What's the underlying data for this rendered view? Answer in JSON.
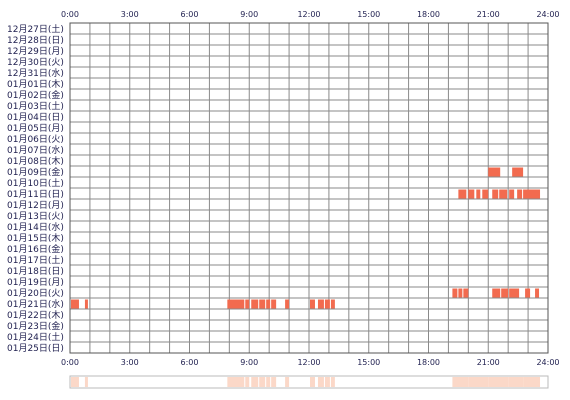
{
  "chart_data": {
    "type": "timeline",
    "x_axis": {
      "unit": "hour",
      "range": [
        0,
        24
      ],
      "tick_labels": [
        "0:00",
        "3:00",
        "6:00",
        "9:00",
        "12:00",
        "15:00",
        "18:00",
        "21:00",
        "24:00"
      ]
    },
    "days": [
      "12月27日(土)",
      "12月28日(日)",
      "12月29日(月)",
      "12月30日(火)",
      "12月31日(水)",
      "01月01日(木)",
      "01月02日(金)",
      "01月03日(土)",
      "01月04日(日)",
      "01月05日(月)",
      "01月06日(火)",
      "01月07日(水)",
      "01月08日(木)",
      "01月09日(金)",
      "01月10日(土)",
      "01月11日(日)",
      "01月12日(月)",
      "01月13日(火)",
      "01月14日(水)",
      "01月15日(木)",
      "01月16日(金)",
      "01月17日(土)",
      "01月18日(日)",
      "01月19日(月)",
      "01月20日(火)",
      "01月21日(水)",
      "01月22日(木)",
      "01月23日(金)",
      "01月24日(土)",
      "01月25日(日)"
    ],
    "activity": [
      {
        "day": "01月09日(金)",
        "segments": [
          [
            21.0,
            21.6
          ],
          [
            22.2,
            22.75
          ]
        ]
      },
      {
        "day": "01月11日(日)",
        "segments": [
          [
            19.5,
            19.9
          ],
          [
            20.0,
            20.3
          ],
          [
            20.4,
            20.6
          ],
          [
            20.7,
            21.0
          ],
          [
            21.2,
            21.5
          ],
          [
            21.55,
            21.95
          ],
          [
            22.05,
            22.3
          ],
          [
            22.45,
            22.7
          ],
          [
            22.75,
            23.6
          ]
        ]
      },
      {
        "day": "01月20日(火)",
        "segments": [
          [
            19.2,
            19.45
          ],
          [
            19.5,
            19.7
          ],
          [
            19.75,
            20.0
          ],
          [
            21.2,
            21.6
          ],
          [
            21.65,
            22.0
          ],
          [
            22.05,
            22.55
          ],
          [
            22.85,
            23.1
          ],
          [
            23.35,
            23.55
          ]
        ]
      },
      {
        "day": "01月21日(水)",
        "segments": [
          [
            0.05,
            0.45
          ],
          [
            0.75,
            0.9
          ],
          [
            7.9,
            8.75
          ],
          [
            8.8,
            9.0
          ],
          [
            9.1,
            9.45
          ],
          [
            9.5,
            9.8
          ],
          [
            9.85,
            10.05
          ],
          [
            10.1,
            10.35
          ],
          [
            10.8,
            11.0
          ],
          [
            12.05,
            12.3
          ],
          [
            12.45,
            12.75
          ],
          [
            12.8,
            13.05
          ],
          [
            13.1,
            13.3
          ]
        ]
      }
    ],
    "summary_segments": [
      [
        0.05,
        0.45
      ],
      [
        0.75,
        0.9
      ],
      [
        7.9,
        8.75
      ],
      [
        8.8,
        9.0
      ],
      [
        9.1,
        9.45
      ],
      [
        9.5,
        9.8
      ],
      [
        9.85,
        10.05
      ],
      [
        10.1,
        10.35
      ],
      [
        10.8,
        11.0
      ],
      [
        12.05,
        12.3
      ],
      [
        12.45,
        12.75
      ],
      [
        12.8,
        13.05
      ],
      [
        13.1,
        13.3
      ],
      [
        19.2,
        20.0
      ],
      [
        20.0,
        21.0
      ],
      [
        21.0,
        22.0
      ],
      [
        22.0,
        22.75
      ],
      [
        22.75,
        23.6
      ]
    ],
    "colors": {
      "bar": "#f26b4f",
      "summary": "#fbd8c8",
      "grid": "#8a8a8a",
      "border": "#555555"
    }
  }
}
